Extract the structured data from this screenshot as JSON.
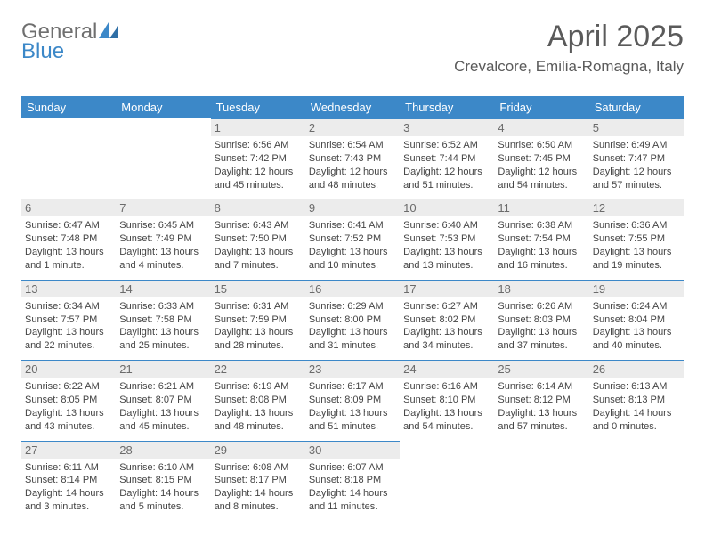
{
  "brand": {
    "part1": "General",
    "part2": "Blue"
  },
  "header": {
    "month_year": "April 2025",
    "location": "Crevalcore, Emilia-Romagna, Italy"
  },
  "colors": {
    "accent": "#3c88c8",
    "daynum_bg": "#ececec",
    "text_muted": "#6b6b6b"
  },
  "day_names": [
    "Sunday",
    "Monday",
    "Tuesday",
    "Wednesday",
    "Thursday",
    "Friday",
    "Saturday"
  ],
  "first_weekday_index": 2,
  "days": [
    {
      "n": 1,
      "sunrise": "6:56 AM",
      "sunset": "7:42 PM",
      "daylight": "12 hours and 45 minutes."
    },
    {
      "n": 2,
      "sunrise": "6:54 AM",
      "sunset": "7:43 PM",
      "daylight": "12 hours and 48 minutes."
    },
    {
      "n": 3,
      "sunrise": "6:52 AM",
      "sunset": "7:44 PM",
      "daylight": "12 hours and 51 minutes."
    },
    {
      "n": 4,
      "sunrise": "6:50 AM",
      "sunset": "7:45 PM",
      "daylight": "12 hours and 54 minutes."
    },
    {
      "n": 5,
      "sunrise": "6:49 AM",
      "sunset": "7:47 PM",
      "daylight": "12 hours and 57 minutes."
    },
    {
      "n": 6,
      "sunrise": "6:47 AM",
      "sunset": "7:48 PM",
      "daylight": "13 hours and 1 minute."
    },
    {
      "n": 7,
      "sunrise": "6:45 AM",
      "sunset": "7:49 PM",
      "daylight": "13 hours and 4 minutes."
    },
    {
      "n": 8,
      "sunrise": "6:43 AM",
      "sunset": "7:50 PM",
      "daylight": "13 hours and 7 minutes."
    },
    {
      "n": 9,
      "sunrise": "6:41 AM",
      "sunset": "7:52 PM",
      "daylight": "13 hours and 10 minutes."
    },
    {
      "n": 10,
      "sunrise": "6:40 AM",
      "sunset": "7:53 PM",
      "daylight": "13 hours and 13 minutes."
    },
    {
      "n": 11,
      "sunrise": "6:38 AM",
      "sunset": "7:54 PM",
      "daylight": "13 hours and 16 minutes."
    },
    {
      "n": 12,
      "sunrise": "6:36 AM",
      "sunset": "7:55 PM",
      "daylight": "13 hours and 19 minutes."
    },
    {
      "n": 13,
      "sunrise": "6:34 AM",
      "sunset": "7:57 PM",
      "daylight": "13 hours and 22 minutes."
    },
    {
      "n": 14,
      "sunrise": "6:33 AM",
      "sunset": "7:58 PM",
      "daylight": "13 hours and 25 minutes."
    },
    {
      "n": 15,
      "sunrise": "6:31 AM",
      "sunset": "7:59 PM",
      "daylight": "13 hours and 28 minutes."
    },
    {
      "n": 16,
      "sunrise": "6:29 AM",
      "sunset": "8:00 PM",
      "daylight": "13 hours and 31 minutes."
    },
    {
      "n": 17,
      "sunrise": "6:27 AM",
      "sunset": "8:02 PM",
      "daylight": "13 hours and 34 minutes."
    },
    {
      "n": 18,
      "sunrise": "6:26 AM",
      "sunset": "8:03 PM",
      "daylight": "13 hours and 37 minutes."
    },
    {
      "n": 19,
      "sunrise": "6:24 AM",
      "sunset": "8:04 PM",
      "daylight": "13 hours and 40 minutes."
    },
    {
      "n": 20,
      "sunrise": "6:22 AM",
      "sunset": "8:05 PM",
      "daylight": "13 hours and 43 minutes."
    },
    {
      "n": 21,
      "sunrise": "6:21 AM",
      "sunset": "8:07 PM",
      "daylight": "13 hours and 45 minutes."
    },
    {
      "n": 22,
      "sunrise": "6:19 AM",
      "sunset": "8:08 PM",
      "daylight": "13 hours and 48 minutes."
    },
    {
      "n": 23,
      "sunrise": "6:17 AM",
      "sunset": "8:09 PM",
      "daylight": "13 hours and 51 minutes."
    },
    {
      "n": 24,
      "sunrise": "6:16 AM",
      "sunset": "8:10 PM",
      "daylight": "13 hours and 54 minutes."
    },
    {
      "n": 25,
      "sunrise": "6:14 AM",
      "sunset": "8:12 PM",
      "daylight": "13 hours and 57 minutes."
    },
    {
      "n": 26,
      "sunrise": "6:13 AM",
      "sunset": "8:13 PM",
      "daylight": "14 hours and 0 minutes."
    },
    {
      "n": 27,
      "sunrise": "6:11 AM",
      "sunset": "8:14 PM",
      "daylight": "14 hours and 3 minutes."
    },
    {
      "n": 28,
      "sunrise": "6:10 AM",
      "sunset": "8:15 PM",
      "daylight": "14 hours and 5 minutes."
    },
    {
      "n": 29,
      "sunrise": "6:08 AM",
      "sunset": "8:17 PM",
      "daylight": "14 hours and 8 minutes."
    },
    {
      "n": 30,
      "sunrise": "6:07 AM",
      "sunset": "8:18 PM",
      "daylight": "14 hours and 11 minutes."
    }
  ],
  "labels": {
    "sunrise": "Sunrise:",
    "sunset": "Sunset:",
    "daylight": "Daylight:"
  }
}
